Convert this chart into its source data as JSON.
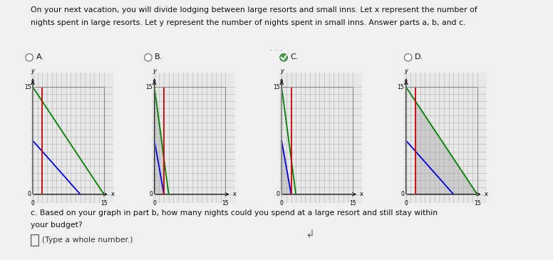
{
  "title_line1": "On your next vacation, you will divide lodging between large resorts and small inns. Let x represent the number of",
  "title_line2": "nights spent in large resorts. Let y represent the number of nights spent in small inns. Answer parts a, b, and c.",
  "question_c_text": "c. Based on your graph in part b, how many nights could you spend at a large resort and still stay within",
  "question_c_text2": "your budget?",
  "answer_hint": "(Type a whole number.)",
  "options": [
    "A.",
    "B.",
    "C.",
    "D."
  ],
  "selected_option": 2,
  "page_bg": "#f0f0f0",
  "plot_bg": "#e8e8e8",
  "grid_color": "#b0b0b0",
  "graphs": [
    {
      "lines": [
        {
          "x": [
            0,
            15
          ],
          "y": [
            15,
            0
          ],
          "color": "#008000",
          "lw": 1.3
        },
        {
          "x": [
            0,
            10
          ],
          "y": [
            7.5,
            0
          ],
          "color": "#0000dd",
          "lw": 1.3
        },
        {
          "x": [
            2,
            2
          ],
          "y": [
            0,
            15
          ],
          "color": "#cc0000",
          "lw": 1.3
        }
      ],
      "shade_vertices": null,
      "label": "A."
    },
    {
      "lines": [
        {
          "x": [
            0,
            3
          ],
          "y": [
            15,
            0
          ],
          "color": "#008000",
          "lw": 1.3
        },
        {
          "x": [
            0,
            2
          ],
          "y": [
            7.5,
            0
          ],
          "color": "#0000dd",
          "lw": 1.3
        },
        {
          "x": [
            2,
            2
          ],
          "y": [
            0,
            15
          ],
          "color": "#cc0000",
          "lw": 1.3
        }
      ],
      "shade": "left_of_red_below_green",
      "label": "B."
    },
    {
      "lines": [
        {
          "x": [
            0,
            3
          ],
          "y": [
            15,
            0
          ],
          "color": "#008000",
          "lw": 1.3
        },
        {
          "x": [
            0,
            2
          ],
          "y": [
            7.5,
            0
          ],
          "color": "#0000dd",
          "lw": 1.3
        },
        {
          "x": [
            2,
            2
          ],
          "y": [
            0,
            15
          ],
          "color": "#cc0000",
          "lw": 1.3
        }
      ],
      "shade": "below_blue",
      "label": "C."
    },
    {
      "lines": [
        {
          "x": [
            0,
            15
          ],
          "y": [
            15,
            0
          ],
          "color": "#008000",
          "lw": 1.3
        },
        {
          "x": [
            0,
            10
          ],
          "y": [
            7.5,
            0
          ],
          "color": "#0000dd",
          "lw": 1.3
        },
        {
          "x": [
            2,
            2
          ],
          "y": [
            0,
            15
          ],
          "color": "#cc0000",
          "lw": 1.3
        }
      ],
      "shade": "below_green_right_of_red",
      "label": "D."
    }
  ]
}
